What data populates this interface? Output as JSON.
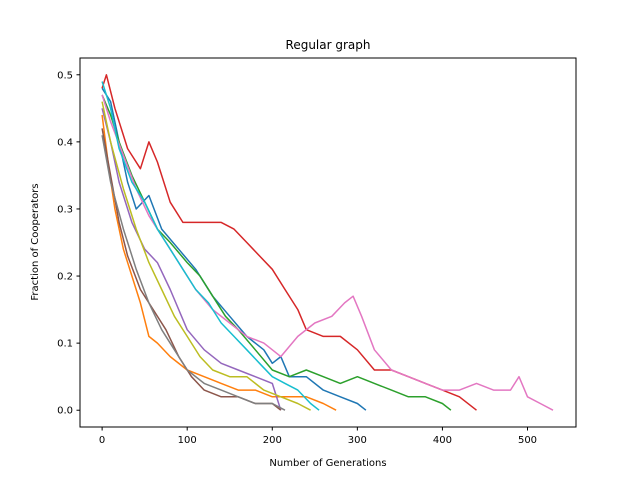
{
  "chart_data": {
    "type": "line",
    "title": "Regular graph",
    "xlabel": "Number of Generations",
    "ylabel": "Fraction of Cooperators",
    "xlim": [
      -26,
      557
    ],
    "ylim": [
      -0.025,
      0.525
    ],
    "xticks": [
      0,
      100,
      200,
      300,
      400,
      500
    ],
    "yticks": [
      0.0,
      0.1,
      0.2,
      0.3,
      0.4,
      0.5
    ],
    "ytick_labels": [
      "0.0",
      "0.1",
      "0.2",
      "0.3",
      "0.4",
      "0.5"
    ],
    "grid": false,
    "legend": "none",
    "series": [
      {
        "color": "#1f77b4",
        "points": [
          [
            0,
            0.48
          ],
          [
            10,
            0.46
          ],
          [
            20,
            0.4
          ],
          [
            30,
            0.34
          ],
          [
            40,
            0.3
          ],
          [
            55,
            0.32
          ],
          [
            70,
            0.27
          ],
          [
            90,
            0.24
          ],
          [
            110,
            0.21
          ],
          [
            130,
            0.17
          ],
          [
            150,
            0.14
          ],
          [
            170,
            0.11
          ],
          [
            190,
            0.09
          ],
          [
            200,
            0.07
          ],
          [
            210,
            0.08
          ],
          [
            220,
            0.05
          ],
          [
            240,
            0.05
          ],
          [
            260,
            0.03
          ],
          [
            280,
            0.02
          ],
          [
            300,
            0.01
          ],
          [
            310,
            0.0
          ]
        ]
      },
      {
        "color": "#ff7f0e",
        "points": [
          [
            0,
            0.44
          ],
          [
            8,
            0.36
          ],
          [
            15,
            0.3
          ],
          [
            25,
            0.24
          ],
          [
            35,
            0.2
          ],
          [
            45,
            0.16
          ],
          [
            55,
            0.11
          ],
          [
            65,
            0.1
          ],
          [
            80,
            0.08
          ],
          [
            100,
            0.06
          ],
          [
            120,
            0.05
          ],
          [
            140,
            0.04
          ],
          [
            160,
            0.03
          ],
          [
            180,
            0.03
          ],
          [
            200,
            0.02
          ],
          [
            220,
            0.02
          ],
          [
            240,
            0.02
          ],
          [
            260,
            0.01
          ],
          [
            275,
            0.0
          ]
        ]
      },
      {
        "color": "#2ca02c",
        "points": [
          [
            0,
            0.47
          ],
          [
            10,
            0.44
          ],
          [
            20,
            0.4
          ],
          [
            35,
            0.35
          ],
          [
            50,
            0.31
          ],
          [
            65,
            0.27
          ],
          [
            80,
            0.25
          ],
          [
            100,
            0.22
          ],
          [
            115,
            0.2
          ],
          [
            130,
            0.17
          ],
          [
            145,
            0.14
          ],
          [
            160,
            0.12
          ],
          [
            180,
            0.09
          ],
          [
            200,
            0.06
          ],
          [
            220,
            0.05
          ],
          [
            240,
            0.06
          ],
          [
            260,
            0.05
          ],
          [
            280,
            0.04
          ],
          [
            300,
            0.05
          ],
          [
            320,
            0.04
          ],
          [
            340,
            0.03
          ],
          [
            360,
            0.02
          ],
          [
            380,
            0.02
          ],
          [
            400,
            0.01
          ],
          [
            410,
            0.0
          ]
        ]
      },
      {
        "color": "#d62728",
        "points": [
          [
            0,
            0.48
          ],
          [
            5,
            0.5
          ],
          [
            15,
            0.45
          ],
          [
            30,
            0.39
          ],
          [
            45,
            0.36
          ],
          [
            55,
            0.4
          ],
          [
            65,
            0.37
          ],
          [
            80,
            0.31
          ],
          [
            95,
            0.28
          ],
          [
            110,
            0.28
          ],
          [
            125,
            0.28
          ],
          [
            140,
            0.28
          ],
          [
            155,
            0.27
          ],
          [
            170,
            0.25
          ],
          [
            185,
            0.23
          ],
          [
            200,
            0.21
          ],
          [
            215,
            0.18
          ],
          [
            230,
            0.15
          ],
          [
            240,
            0.12
          ],
          [
            260,
            0.11
          ],
          [
            280,
            0.11
          ],
          [
            300,
            0.09
          ],
          [
            320,
            0.06
          ],
          [
            340,
            0.06
          ],
          [
            360,
            0.05
          ],
          [
            380,
            0.04
          ],
          [
            400,
            0.03
          ],
          [
            420,
            0.02
          ],
          [
            440,
            0.0
          ]
        ]
      },
      {
        "color": "#9467bd",
        "points": [
          [
            0,
            0.45
          ],
          [
            10,
            0.4
          ],
          [
            20,
            0.34
          ],
          [
            35,
            0.28
          ],
          [
            50,
            0.24
          ],
          [
            65,
            0.22
          ],
          [
            80,
            0.18
          ],
          [
            100,
            0.12
          ],
          [
            120,
            0.09
          ],
          [
            140,
            0.07
          ],
          [
            160,
            0.06
          ],
          [
            180,
            0.05
          ],
          [
            200,
            0.04
          ],
          [
            210,
            0.0
          ]
        ]
      },
      {
        "color": "#8c564b",
        "points": [
          [
            0,
            0.42
          ],
          [
            10,
            0.35
          ],
          [
            20,
            0.28
          ],
          [
            30,
            0.23
          ],
          [
            45,
            0.18
          ],
          [
            60,
            0.15
          ],
          [
            75,
            0.12
          ],
          [
            90,
            0.08
          ],
          [
            105,
            0.05
          ],
          [
            120,
            0.03
          ],
          [
            140,
            0.02
          ],
          [
            160,
            0.02
          ],
          [
            180,
            0.01
          ],
          [
            200,
            0.01
          ],
          [
            210,
            0.0
          ]
        ]
      },
      {
        "color": "#e377c2",
        "points": [
          [
            0,
            0.47
          ],
          [
            10,
            0.43
          ],
          [
            25,
            0.38
          ],
          [
            40,
            0.33
          ],
          [
            55,
            0.29
          ],
          [
            70,
            0.26
          ],
          [
            90,
            0.22
          ],
          [
            110,
            0.18
          ],
          [
            130,
            0.15
          ],
          [
            150,
            0.13
          ],
          [
            170,
            0.11
          ],
          [
            190,
            0.1
          ],
          [
            210,
            0.08
          ],
          [
            230,
            0.11
          ],
          [
            250,
            0.13
          ],
          [
            270,
            0.14
          ],
          [
            285,
            0.16
          ],
          [
            295,
            0.17
          ],
          [
            305,
            0.14
          ],
          [
            320,
            0.09
          ],
          [
            340,
            0.06
          ],
          [
            360,
            0.05
          ],
          [
            380,
            0.04
          ],
          [
            400,
            0.03
          ],
          [
            420,
            0.03
          ],
          [
            440,
            0.04
          ],
          [
            460,
            0.03
          ],
          [
            480,
            0.03
          ],
          [
            490,
            0.05
          ],
          [
            500,
            0.02
          ],
          [
            515,
            0.01
          ],
          [
            530,
            0.0
          ]
        ]
      },
      {
        "color": "#7f7f7f",
        "points": [
          [
            0,
            0.41
          ],
          [
            10,
            0.34
          ],
          [
            25,
            0.27
          ],
          [
            40,
            0.21
          ],
          [
            55,
            0.16
          ],
          [
            70,
            0.12
          ],
          [
            85,
            0.09
          ],
          [
            100,
            0.06
          ],
          [
            120,
            0.04
          ],
          [
            140,
            0.03
          ],
          [
            160,
            0.02
          ],
          [
            180,
            0.01
          ],
          [
            200,
            0.01
          ],
          [
            215,
            0.0
          ]
        ]
      },
      {
        "color": "#bcbd22",
        "points": [
          [
            0,
            0.46
          ],
          [
            10,
            0.4
          ],
          [
            25,
            0.33
          ],
          [
            40,
            0.27
          ],
          [
            55,
            0.22
          ],
          [
            70,
            0.18
          ],
          [
            85,
            0.14
          ],
          [
            100,
            0.11
          ],
          [
            115,
            0.08
          ],
          [
            130,
            0.06
          ],
          [
            150,
            0.05
          ],
          [
            170,
            0.05
          ],
          [
            190,
            0.03
          ],
          [
            210,
            0.02
          ],
          [
            230,
            0.01
          ],
          [
            245,
            0.0
          ]
        ]
      },
      {
        "color": "#17becf",
        "points": [
          [
            0,
            0.49
          ],
          [
            10,
            0.45
          ],
          [
            20,
            0.39
          ],
          [
            35,
            0.34
          ],
          [
            50,
            0.31
          ],
          [
            65,
            0.27
          ],
          [
            80,
            0.24
          ],
          [
            95,
            0.21
          ],
          [
            110,
            0.18
          ],
          [
            125,
            0.16
          ],
          [
            140,
            0.13
          ],
          [
            155,
            0.11
          ],
          [
            170,
            0.09
          ],
          [
            185,
            0.07
          ],
          [
            200,
            0.05
          ],
          [
            215,
            0.04
          ],
          [
            230,
            0.03
          ],
          [
            245,
            0.01
          ],
          [
            255,
            0.0
          ]
        ]
      }
    ]
  }
}
